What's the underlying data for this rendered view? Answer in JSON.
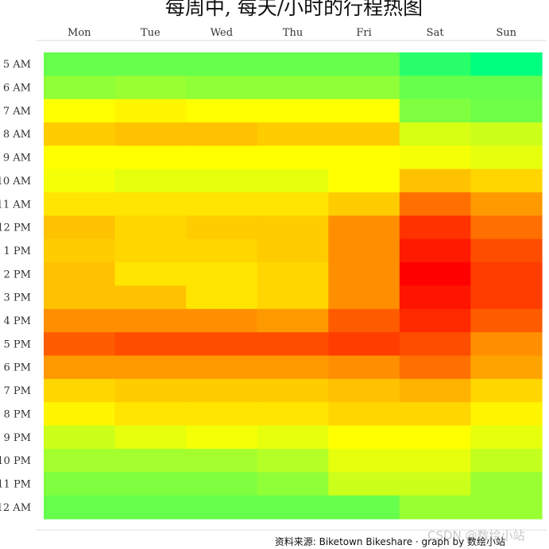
{
  "chart_data": {
    "type": "heatmap",
    "title": "每周中, 每天/小时的行程热图",
    "xlabel": "",
    "ylabel": "",
    "x_categories": [
      "Mon",
      "Tue",
      "Wed",
      "Thu",
      "Fri",
      "Sat",
      "Sun"
    ],
    "y_categories": [
      "5 AM",
      "6 AM",
      "7 AM",
      "8 AM",
      "9 AM",
      "10 AM",
      "11 AM",
      "12 PM",
      "1 PM",
      "2 PM",
      "3 PM",
      "4 PM",
      "5 PM",
      "6 PM",
      "7 PM",
      "8 PM",
      "9 PM",
      "10 PM",
      "11 PM",
      "12 AM"
    ],
    "values": [
      [
        0.2,
        0.2,
        0.2,
        0.2,
        0.2,
        0.08,
        0.0
      ],
      [
        0.28,
        0.3,
        0.28,
        0.28,
        0.28,
        0.2,
        0.2
      ],
      [
        0.5,
        0.52,
        0.5,
        0.5,
        0.5,
        0.25,
        0.22
      ],
      [
        0.6,
        0.62,
        0.62,
        0.6,
        0.6,
        0.42,
        0.4
      ],
      [
        0.5,
        0.5,
        0.5,
        0.5,
        0.5,
        0.48,
        0.45
      ],
      [
        0.48,
        0.45,
        0.45,
        0.45,
        0.5,
        0.62,
        0.58
      ],
      [
        0.55,
        0.55,
        0.55,
        0.55,
        0.6,
        0.78,
        0.7
      ],
      [
        0.62,
        0.58,
        0.6,
        0.6,
        0.72,
        0.9,
        0.78
      ],
      [
        0.6,
        0.58,
        0.58,
        0.6,
        0.72,
        0.95,
        0.85
      ],
      [
        0.62,
        0.55,
        0.55,
        0.58,
        0.72,
        1.0,
        0.88
      ],
      [
        0.62,
        0.62,
        0.55,
        0.58,
        0.72,
        0.96,
        0.88
      ],
      [
        0.72,
        0.72,
        0.72,
        0.7,
        0.82,
        0.92,
        0.82
      ],
      [
        0.82,
        0.85,
        0.85,
        0.85,
        0.88,
        0.85,
        0.72
      ],
      [
        0.7,
        0.7,
        0.7,
        0.7,
        0.72,
        0.78,
        0.68
      ],
      [
        0.58,
        0.6,
        0.6,
        0.6,
        0.62,
        0.65,
        0.58
      ],
      [
        0.52,
        0.55,
        0.55,
        0.55,
        0.58,
        0.58,
        0.52
      ],
      [
        0.4,
        0.45,
        0.48,
        0.45,
        0.5,
        0.5,
        0.45
      ],
      [
        0.32,
        0.32,
        0.32,
        0.35,
        0.45,
        0.45,
        0.38
      ],
      [
        0.25,
        0.25,
        0.25,
        0.28,
        0.4,
        0.4,
        0.3
      ],
      [
        0.2,
        0.2,
        0.2,
        0.2,
        0.2,
        0.3,
        0.3
      ]
    ],
    "colorscale": [
      "#00ff7f",
      "#ffff00",
      "#ff0000"
    ],
    "legend": "none"
  },
  "source_text": "资料来源: Biketown Bikeshare · graph by 数绘小站",
  "watermark": "CSDN @数绘小站"
}
